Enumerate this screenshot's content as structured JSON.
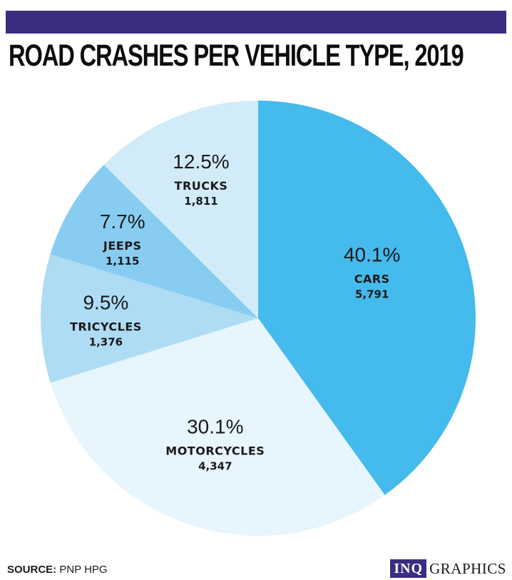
{
  "header": {
    "title": "ROAD CRASHES PER VEHICLE TYPE, 2019"
  },
  "chart_data": {
    "type": "pie",
    "title": "ROAD CRASHES PER VEHICLE TYPE, 2019",
    "slices": [
      {
        "label": "CARS",
        "value": 5791,
        "value_label": "5,791",
        "percent": 40.1,
        "percent_label": "40.1%",
        "color": "#45baec"
      },
      {
        "label": "MOTORCYCLES",
        "value": 4347,
        "value_label": "4,347",
        "percent": 30.1,
        "percent_label": "30.1%",
        "color": "#e7f5fc"
      },
      {
        "label": "TRICYCLES",
        "value": 1376,
        "value_label": "1,376",
        "percent": 9.5,
        "percent_label": "9.5%",
        "color": "#afdcf5"
      },
      {
        "label": "JEEPS",
        "value": 1115,
        "value_label": "1,115",
        "percent": 7.7,
        "percent_label": "7.7%",
        "color": "#88cdf1"
      },
      {
        "label": "TRUCKS",
        "value": 1811,
        "value_label": "1,811",
        "percent": 12.5,
        "percent_label": "12.5%",
        "color": "#d2ebf9"
      }
    ],
    "start": "12 o'clock",
    "direction": "clockwise"
  },
  "footer": {
    "source_label": "SOURCE:",
    "source_text": "PNP HPG",
    "logo_box": "INQ",
    "logo_text": "GRAPHICS"
  }
}
